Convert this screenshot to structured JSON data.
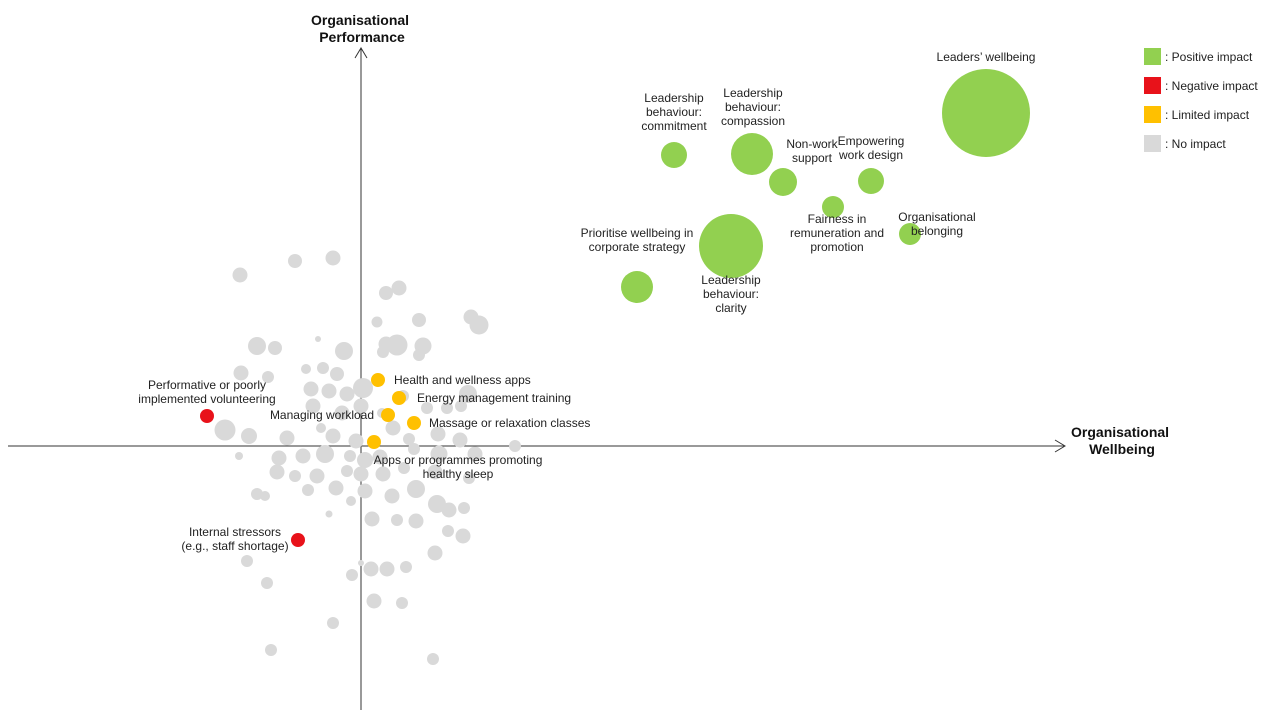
{
  "chart_data": {
    "type": "scatter",
    "subtype": "bubble",
    "title": "",
    "xlabel": "Organisational Wellbeing",
    "ylabel": "Organisational Performance",
    "grid": false,
    "legend_position": "top-right",
    "colors": {
      "positive": "#92D050",
      "negative": "#E8121A",
      "limited": "#FFC000",
      "none": "#D9D9D9"
    },
    "legend": [
      {
        "category": "positive",
        "label": ": Positive impact"
      },
      {
        "category": "negative",
        "label": ": Negative impact"
      },
      {
        "category": "limited",
        "label": ": Limited impact"
      },
      {
        "category": "none",
        "label": ": No impact"
      }
    ],
    "labeled_points": [
      {
        "name": "Leaders’ wellbeing",
        "lines": [
          "Leaders’ wellbeing"
        ],
        "x": 6.25,
        "y": 3.33,
        "r": 4.4,
        "category": "positive"
      },
      {
        "name": "Leadership behaviour: commitment",
        "lines": [
          "Leadership",
          "behaviour:",
          "commitment"
        ],
        "x": 3.13,
        "y": 2.91,
        "r": 1.3,
        "category": "positive"
      },
      {
        "name": "Leadership behaviour: compassion",
        "lines": [
          "Leadership",
          "behaviour:",
          "compassion"
        ],
        "x": 3.91,
        "y": 2.92,
        "r": 2.1,
        "category": "positive"
      },
      {
        "name": "Non-work support",
        "lines": [
          "Non-work",
          "support"
        ],
        "x": 4.22,
        "y": 2.64,
        "r": 1.4,
        "category": "positive"
      },
      {
        "name": "Empowering work design",
        "lines": [
          "Empowering",
          "work design"
        ],
        "x": 5.1,
        "y": 2.65,
        "r": 1.3,
        "category": "positive"
      },
      {
        "name": "Fairness in remuneration and promotion",
        "lines": [
          "Fairness in",
          "remuneration and",
          "promotion"
        ],
        "x": 4.72,
        "y": 2.39,
        "r": 1.1,
        "category": "positive"
      },
      {
        "name": "Organisational belonging",
        "lines": [
          "Organisational",
          "belonging"
        ],
        "x": 5.49,
        "y": 2.12,
        "r": 1.1,
        "category": "positive"
      },
      {
        "name": "Prioritise wellbeing in corporate strategy",
        "lines": [
          "Prioritise wellbeing in",
          "corporate strategy"
        ],
        "x": 2.76,
        "y": 1.59,
        "r": 1.6,
        "category": "positive"
      },
      {
        "name": "Leadership behaviour: clarity",
        "lines": [
          "Leadership",
          "behaviour:",
          "clarity"
        ],
        "x": 3.7,
        "y": 2.0,
        "r": 3.2,
        "category": "positive"
      },
      {
        "name": "Health and wellness apps",
        "lines": [
          "Health and wellness apps"
        ],
        "x": 0.17,
        "y": 0.66,
        "r": 0.7,
        "category": "limited"
      },
      {
        "name": "Energy management training",
        "lines": [
          "Energy management training"
        ],
        "x": 0.38,
        "y": 0.48,
        "r": 0.7,
        "category": "limited"
      },
      {
        "name": "Managing workload",
        "lines": [
          "Managing workload"
        ],
        "x": 0.27,
        "y": 0.31,
        "r": 0.7,
        "category": "limited"
      },
      {
        "name": "Massage or relaxation classes",
        "lines": [
          "Massage or relaxation classes"
        ],
        "x": 0.53,
        "y": 0.23,
        "r": 0.7,
        "category": "limited"
      },
      {
        "name": "Apps or programmes promoting healthy sleep",
        "lines": [
          "Apps or programmes promoting",
          "healthy sleep"
        ],
        "x": 0.13,
        "y": 0.04,
        "r": 0.7,
        "category": "limited"
      },
      {
        "name": "Performative or poorly implemented volunteering",
        "lines": [
          "Performative or poorly",
          "implemented volunteering"
        ],
        "x": -1.54,
        "y": 0.3,
        "r": 0.7,
        "category": "negative"
      },
      {
        "name": "Internal stressors (e.g., staff shortage)",
        "lines": [
          "Internal stressors",
          "(e.g., staff shortage)"
        ],
        "x": -0.63,
        "y": -0.94,
        "r": 0.7,
        "category": "negative"
      }
    ],
    "unlabeled_points": [
      [
        -1.21,
        1.71,
        0.75
      ],
      [
        -0.66,
        1.85,
        0.7
      ],
      [
        -0.28,
        1.88,
        0.75
      ],
      [
        0.25,
        1.53,
        0.7
      ],
      [
        0.38,
        1.58,
        0.75
      ],
      [
        0.16,
        1.24,
        0.55
      ],
      [
        0.58,
        1.26,
        0.7
      ],
      [
        1.1,
        1.29,
        0.75
      ],
      [
        1.18,
        1.21,
        0.95
      ],
      [
        -1.04,
        1.0,
        0.9
      ],
      [
        -0.86,
        0.98,
        0.7
      ],
      [
        -0.43,
        1.07,
        0.3
      ],
      [
        -0.17,
        0.95,
        0.9
      ],
      [
        0.25,
        1.02,
        0.75
      ],
      [
        0.36,
        1.01,
        1.05
      ],
      [
        0.62,
        1.0,
        0.85
      ],
      [
        0.58,
        0.91,
        0.6
      ],
      [
        0.22,
        0.94,
        0.6
      ],
      [
        -1.2,
        0.73,
        0.75
      ],
      [
        -0.93,
        0.69,
        0.6
      ],
      [
        -0.55,
        0.77,
        0.5
      ],
      [
        -0.38,
        0.78,
        0.6
      ],
      [
        -0.24,
        0.72,
        0.7
      ],
      [
        0.02,
        0.58,
        1.0
      ],
      [
        -0.5,
        0.57,
        0.75
      ],
      [
        -0.32,
        0.55,
        0.75
      ],
      [
        -0.14,
        0.52,
        0.75
      ],
      [
        1.07,
        0.52,
        0.9
      ],
      [
        1.0,
        0.4,
        0.6
      ],
      [
        0.86,
        0.38,
        0.6
      ],
      [
        0.66,
        0.38,
        0.6
      ],
      [
        0.0,
        0.4,
        0.75
      ],
      [
        0.21,
        0.33,
        0.5
      ],
      [
        -0.48,
        0.4,
        0.75
      ],
      [
        -0.19,
        0.33,
        0.75
      ],
      [
        -1.36,
        0.16,
        1.05
      ],
      [
        -1.12,
        0.1,
        0.8
      ],
      [
        -0.74,
        0.08,
        0.75
      ],
      [
        -0.28,
        0.1,
        0.75
      ],
      [
        -0.4,
        0.18,
        0.5
      ],
      [
        -0.05,
        0.05,
        0.75
      ],
      [
        0.32,
        0.18,
        0.75
      ],
      [
        0.77,
        0.12,
        0.75
      ],
      [
        0.99,
        0.06,
        0.75
      ],
      [
        1.14,
        -0.08,
        0.75
      ],
      [
        1.54,
        0.0,
        0.6
      ],
      [
        0.78,
        -0.08,
        0.85
      ],
      [
        0.53,
        -0.03,
        0.6
      ],
      [
        0.19,
        -0.11,
        0.75
      ],
      [
        -0.36,
        -0.08,
        0.9
      ],
      [
        -0.11,
        -0.1,
        0.6
      ],
      [
        0.04,
        -0.14,
        0.8
      ],
      [
        -0.82,
        -0.12,
        0.75
      ],
      [
        -0.58,
        -0.1,
        0.75
      ],
      [
        -1.22,
        -0.1,
        0.4
      ],
      [
        -0.84,
        -0.26,
        0.75
      ],
      [
        -0.66,
        -0.3,
        0.6
      ],
      [
        -0.44,
        -0.3,
        0.75
      ],
      [
        -0.14,
        -0.25,
        0.6
      ],
      [
        0.0,
        -0.28,
        0.75
      ],
      [
        0.22,
        -0.28,
        0.75
      ],
      [
        0.43,
        -0.22,
        0.6
      ],
      [
        0.74,
        -0.26,
        0.75
      ],
      [
        1.08,
        -0.32,
        0.6
      ],
      [
        -0.53,
        -0.44,
        0.6
      ],
      [
        -0.25,
        -0.42,
        0.75
      ],
      [
        0.04,
        -0.45,
        0.75
      ],
      [
        0.31,
        -0.5,
        0.75
      ],
      [
        0.55,
        -0.43,
        0.9
      ],
      [
        0.76,
        -0.58,
        0.9
      ],
      [
        0.88,
        -0.64,
        0.75
      ],
      [
        1.03,
        -0.62,
        0.6
      ],
      [
        -0.1,
        -0.55,
        0.5
      ],
      [
        -1.04,
        -0.48,
        0.6
      ],
      [
        -0.96,
        -0.5,
        0.5
      ],
      [
        -0.32,
        -0.68,
        0.35
      ],
      [
        0.11,
        -0.73,
        0.75
      ],
      [
        0.36,
        -0.74,
        0.6
      ],
      [
        0.55,
        -0.75,
        0.75
      ],
      [
        0.87,
        -0.85,
        0.6
      ],
      [
        1.02,
        -0.9,
        0.75
      ],
      [
        0.0,
        -1.17,
        0.3
      ],
      [
        0.1,
        -1.23,
        0.75
      ],
      [
        0.26,
        -1.23,
        0.75
      ],
      [
        -0.09,
        -1.29,
        0.6
      ],
      [
        0.45,
        -1.21,
        0.6
      ],
      [
        0.74,
        -1.07,
        0.75
      ],
      [
        -1.14,
        -1.15,
        0.6
      ],
      [
        -0.94,
        -1.37,
        0.6
      ],
      [
        0.13,
        -1.55,
        0.75
      ],
      [
        0.41,
        -1.57,
        0.6
      ],
      [
        -0.28,
        -1.77,
        0.6
      ],
      [
        -0.9,
        -2.04,
        0.6
      ],
      [
        0.72,
        -2.13,
        0.6
      ],
      [
        0.42,
        0.5,
        0.6
      ],
      [
        0.48,
        0.07,
        0.6
      ]
    ]
  }
}
